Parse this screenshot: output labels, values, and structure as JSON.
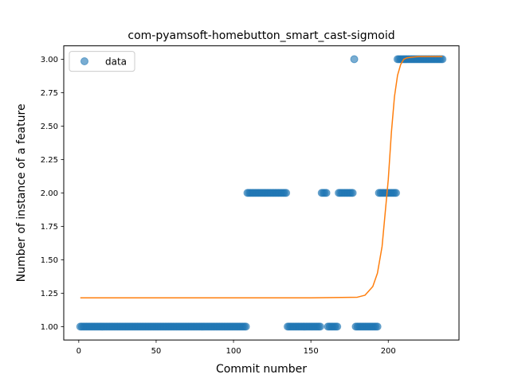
{
  "chart_data": {
    "type": "scatter",
    "title": "com-pyamsoft-homebutton_smart_cast-sigmoid",
    "xlabel": "Commit number",
    "ylabel": "Number of instance of a feature",
    "xlim": [
      -9.7,
      245.7
    ],
    "ylim": [
      0.9,
      3.1
    ],
    "xticks": [
      0,
      50,
      100,
      150,
      200
    ],
    "xtick_labels": [
      "0",
      "50",
      "100",
      "150",
      "200"
    ],
    "yticks": [
      1.0,
      1.25,
      1.5,
      1.75,
      2.0,
      2.25,
      2.5,
      2.75,
      3.0
    ],
    "ytick_labels": [
      "1.00",
      "1.25",
      "1.50",
      "1.75",
      "2.00",
      "2.25",
      "2.50",
      "2.75",
      "3.00"
    ],
    "grid": false,
    "legend": {
      "position": "top-left",
      "entries": [
        "data"
      ]
    },
    "scatter": {
      "name": "data",
      "color": "#1f77b4",
      "segments": [
        {
          "from": 1,
          "to": 108,
          "y": 1
        },
        {
          "from": 109,
          "to": 134,
          "y": 2
        },
        {
          "from": 135,
          "to": 156,
          "y": 1
        },
        {
          "from": 157,
          "to": 160,
          "y": 2
        },
        {
          "from": 161,
          "to": 167,
          "y": 1
        },
        {
          "from": 168,
          "to": 177,
          "y": 2
        },
        {
          "from": 178,
          "to": 178,
          "y": 3
        },
        {
          "from": 179,
          "to": 193,
          "y": 1
        },
        {
          "from": 194,
          "to": 205,
          "y": 2
        },
        {
          "from": 206,
          "to": 235,
          "y": 3
        }
      ]
    },
    "fit": {
      "color": "#ff7f0e",
      "x": [
        1,
        150,
        180,
        185,
        190,
        193,
        196,
        198,
        200,
        202,
        204,
        206,
        208,
        210,
        212,
        215,
        220,
        228,
        235
      ],
      "y": [
        1.215,
        1.215,
        1.22,
        1.235,
        1.3,
        1.4,
        1.6,
        1.85,
        2.1,
        2.45,
        2.72,
        2.88,
        2.96,
        3.0,
        3.01,
        3.015,
        3.02,
        3.02,
        3.02
      ]
    }
  }
}
